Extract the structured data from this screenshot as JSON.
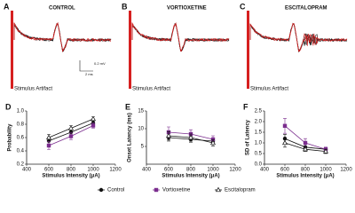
{
  "traces": [
    {
      "letter": "A",
      "title": "CONTROL",
      "artifact": "Stimulus Artifact",
      "scale_y": "0.2 mV",
      "scale_x": "2 ms"
    },
    {
      "letter": "B",
      "title": "VORTIOXETINE",
      "artifact": "Stimulus Artifact"
    },
    {
      "letter": "C",
      "title": "ESCITALOPRAM",
      "artifact": "Stimulus Artifact"
    }
  ],
  "legend": [
    {
      "name": "Control",
      "color": "#111111",
      "marker": "circle"
    },
    {
      "name": "Vortioxetine",
      "color": "#7b2d8e",
      "marker": "square"
    },
    {
      "name": "Escitalopram",
      "color": "#111111",
      "marker": "triangle"
    }
  ],
  "chart_data": [
    {
      "type": "line",
      "panel": "D",
      "xlabel": "Stimulus Intensity (μA)",
      "ylabel": "Probability",
      "x": [
        600,
        800,
        1000
      ],
      "xlim": [
        400,
        1200
      ],
      "xticks": [
        400,
        600,
        800,
        1000,
        1200
      ],
      "ylim": [
        0.2,
        1.0
      ],
      "yticks": [
        {
          "value": 0.2,
          "label": "0.2"
        },
        {
          "value": 0.4,
          "label": "0.4"
        },
        {
          "value": 0.6,
          "label": "0.6"
        },
        {
          "value": 0.8,
          "label": "0.8"
        },
        {
          "value": 1.0,
          "label": "1.0"
        }
      ],
      "series": [
        {
          "values": [
            0.55,
            0.68,
            0.82
          ],
          "errors": [
            0.05,
            0.04,
            0.04
          ]
        },
        {
          "values": [
            0.48,
            0.62,
            0.78
          ],
          "errors": [
            0.06,
            0.05,
            0.04
          ]
        },
        {
          "values": [
            0.6,
            0.74,
            0.88
          ],
          "errors": [
            0.05,
            0.04,
            0.03
          ]
        }
      ]
    },
    {
      "type": "line",
      "panel": "E",
      "xlabel": "Stimulus Intensity (μA)",
      "ylabel": "Onset Latency (ms)",
      "x": [
        600,
        800,
        1000
      ],
      "xlim": [
        400,
        1200
      ],
      "xticks": [
        400,
        600,
        800,
        1000,
        1200
      ],
      "ylim": [
        0,
        15
      ],
      "yticks": [
        5,
        10,
        15
      ],
      "series": [
        {
          "values": [
            7.5,
            7,
            6.5
          ],
          "errors": [
            1,
            0.8,
            0.8
          ]
        },
        {
          "values": [
            9,
            8.5,
            7
          ],
          "errors": [
            1.5,
            1.2,
            1
          ]
        },
        {
          "values": [
            8,
            7.5,
            6
          ],
          "errors": [
            1.2,
            1,
            0.9
          ]
        }
      ]
    },
    {
      "type": "line",
      "panel": "F",
      "xlabel": "Stimulus Intensity (μA)",
      "ylabel": "SD of Latency",
      "x": [
        600,
        800,
        1000
      ],
      "xlim": [
        400,
        1200
      ],
      "xticks": [
        400,
        600,
        800,
        1000,
        1200
      ],
      "ylim": [
        0,
        2.5
      ],
      "yticks": [
        {
          "value": 0,
          "label": "0.0"
        },
        {
          "value": 0.5,
          "label": "0.5"
        },
        {
          "value": 1,
          "label": "1.0"
        },
        {
          "value": 1.5,
          "label": "1.5"
        },
        {
          "value": 2,
          "label": "2.0"
        },
        {
          "value": 2.5,
          "label": "2.5"
        }
      ],
      "series": [
        {
          "values": [
            1.2,
            0.8,
            0.7
          ],
          "errors": [
            0.2,
            0.15,
            0.1
          ]
        },
        {
          "values": [
            1.8,
            1.0,
            0.7
          ],
          "errors": [
            0.35,
            0.2,
            0.1
          ]
        },
        {
          "values": [
            1.0,
            0.7,
            0.6
          ],
          "errors": [
            0.2,
            0.1,
            0.1
          ]
        }
      ]
    }
  ]
}
